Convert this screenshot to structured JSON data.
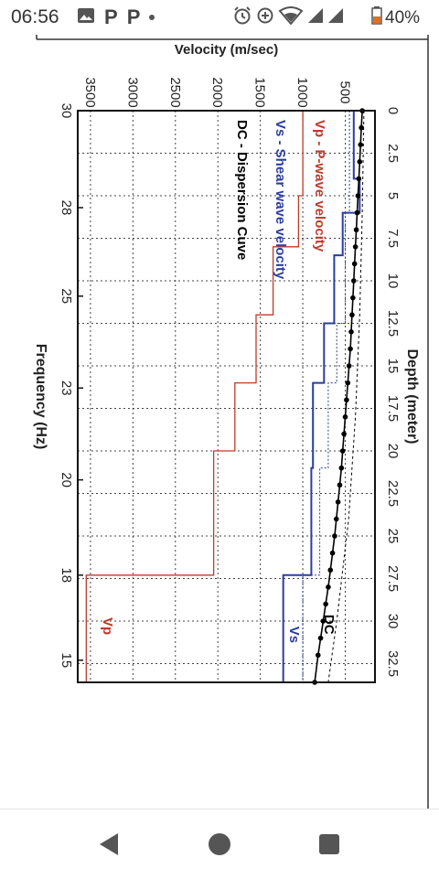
{
  "status_bar": {
    "time": "06:56",
    "battery_percent": "40%",
    "icons": [
      "image-icon",
      "p-notification-icon",
      "p-notification-icon",
      "dot-icon",
      "alarm-icon",
      "data-saver-icon",
      "wifi-icon",
      "signal-icon",
      "signal-icon",
      "battery-icon"
    ],
    "notif_letters": [
      "P",
      "P"
    ]
  },
  "navigation_bar": {
    "buttons": [
      "back-button",
      "home-button",
      "recents-button"
    ]
  },
  "colors": {
    "vp": "#c0392b",
    "vs": "#2c3e9e",
    "dc": "#000000",
    "vs_dashed": "#2c3e9e",
    "grid": "#444444"
  },
  "chart_data": {
    "type": "line",
    "rotation": "rotated 90 degrees clockwise",
    "title": "",
    "velocity_axis": {
      "label": "Velocity (m/sec)",
      "ticks": [
        "500",
        "1000",
        "1500",
        "2000",
        "2500",
        "3000",
        "3500"
      ],
      "tick_values": [
        500,
        1000,
        1500,
        2000,
        2500,
        3000,
        3500
      ],
      "range": [
        150,
        3650
      ]
    },
    "depth_axis": {
      "label": "Depth (meter)",
      "ticks": [
        "0",
        "2.5",
        "5",
        "7.5",
        "10",
        "12.5",
        "15",
        "17.5",
        "20",
        "22.5",
        "25",
        "27.5",
        "30",
        "32.5"
      ],
      "tick_values": [
        0,
        2.5,
        5,
        7.5,
        10,
        12.5,
        15,
        17.5,
        20,
        22.5,
        25,
        27.5,
        30,
        32.5
      ],
      "range": [
        0,
        33.6
      ]
    },
    "frequency_axis": {
      "label": "Frequency (Hz)",
      "ticks": [
        "30",
        "28",
        "25",
        "23",
        "20",
        "18",
        "15"
      ],
      "tick_positions_depth": [
        0,
        5.7,
        10.9,
        16.3,
        21.7,
        27.3,
        32.3
      ]
    },
    "legend": {
      "placement": "top-left",
      "entries": [
        "Vp - P-wave velocity",
        "Vs - Shear wave velocity",
        "DC - Dispersion Cuve"
      ]
    },
    "series": [
      {
        "name": "Vp",
        "label": "Vp",
        "style": "step",
        "depth": [
          0,
          5,
          5,
          8,
          8,
          12,
          12,
          16,
          16,
          20,
          20,
          27.3,
          27.3,
          33.6
        ],
        "velocity": [
          1000,
          1000,
          1050,
          1050,
          1350,
          1350,
          1550,
          1550,
          1800,
          1800,
          2050,
          2050,
          3550,
          3550
        ]
      },
      {
        "name": "Vs",
        "label": "Vs",
        "style": "step",
        "depth": [
          0,
          4,
          4,
          6,
          6,
          8.5,
          8.5,
          12.5,
          12.5,
          16,
          16,
          21,
          21,
          27.3,
          27.3,
          33.6
        ],
        "velocity": [
          400,
          400,
          330,
          330,
          530,
          530,
          630,
          630,
          750,
          750,
          880,
          880,
          900,
          900,
          1230,
          1230
        ]
      },
      {
        "name": "Vs initial",
        "style": "dashed step",
        "depth": [
          0,
          6,
          6,
          12.5,
          12.5,
          16,
          16,
          21,
          21,
          27.3,
          27.3,
          33.6
        ],
        "velocity": [
          450,
          450,
          500,
          500,
          600,
          600,
          700,
          700,
          800,
          800,
          1000,
          1000
        ]
      },
      {
        "name": "DC",
        "label": "DC",
        "style": "line with markers",
        "depth": [
          0,
          1,
          2,
          3,
          4,
          5,
          6,
          7,
          8,
          9,
          10,
          11,
          12,
          13,
          14,
          15,
          16,
          17,
          18,
          19,
          20,
          21,
          22,
          23,
          24,
          25,
          26,
          27,
          28,
          29,
          30,
          31,
          32,
          33.6
        ],
        "velocity": [
          300,
          310,
          320,
          330,
          340,
          350,
          360,
          370,
          380,
          390,
          400,
          410,
          420,
          430,
          440,
          455,
          470,
          485,
          500,
          515,
          530,
          545,
          565,
          585,
          605,
          625,
          650,
          675,
          700,
          730,
          760,
          790,
          820,
          860
        ]
      },
      {
        "name": "DC reference",
        "style": "dashed line",
        "depth": [
          0,
          6,
          12,
          18,
          24,
          30,
          33.6
        ],
        "velocity": [
          280,
          300,
          330,
          380,
          460,
          600,
          700
        ]
      }
    ]
  }
}
